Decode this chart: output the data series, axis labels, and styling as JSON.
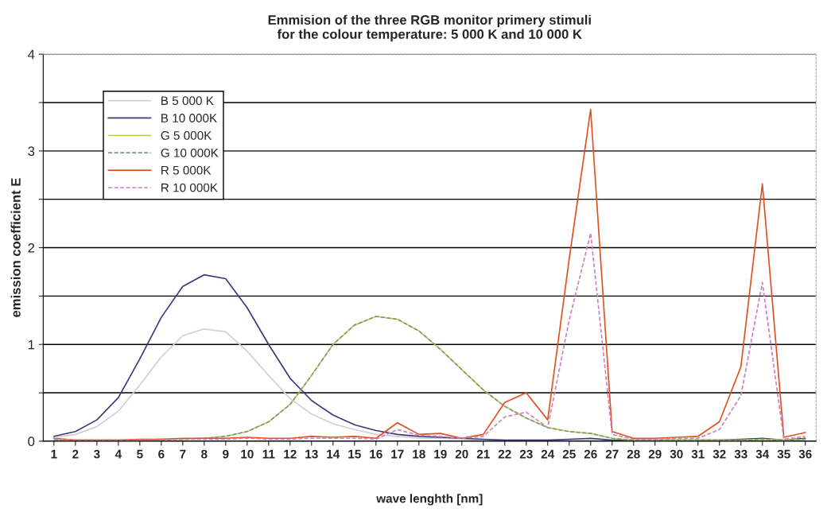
{
  "chart_data": {
    "type": "line",
    "title": "Emmision of the three RGB monitor primery stimuli\nfor the colour temperature: 5 000 K and 10 000 K",
    "xlabel": "wave lenghth [nm]",
    "ylabel": "emission coefficient E",
    "categories": [
      "1",
      "2",
      "3",
      "4",
      "5",
      "6",
      "7",
      "8",
      "9",
      "10",
      "11",
      "12",
      "13",
      "14",
      "15",
      "16",
      "17",
      "18",
      "19",
      "20",
      "21",
      "22",
      "23",
      "24",
      "25",
      "26",
      "27",
      "28",
      "29",
      "30",
      "31",
      "32",
      "33",
      "34",
      "35",
      "36"
    ],
    "series": [
      {
        "name": "B 5 000 K",
        "color": "#d0d0d0",
        "line_style": "solid",
        "values": [
          0.04,
          0.07,
          0.15,
          0.31,
          0.58,
          0.87,
          1.09,
          1.16,
          1.13,
          0.93,
          0.68,
          0.44,
          0.28,
          0.18,
          0.12,
          0.07,
          0.05,
          0.03,
          0.03,
          0.02,
          0.01,
          0.01,
          0.01,
          0.01,
          0.01,
          0.02,
          0.01,
          0.01,
          0.01,
          0.01,
          0.01,
          0.01,
          0.01,
          0.02,
          0.01,
          0.02
        ]
      },
      {
        "name": "B 10 000K",
        "color": "#3a3a7a",
        "line_style": "solid",
        "values": [
          0.05,
          0.1,
          0.22,
          0.45,
          0.85,
          1.28,
          1.6,
          1.72,
          1.68,
          1.38,
          1.0,
          0.65,
          0.42,
          0.27,
          0.17,
          0.11,
          0.07,
          0.05,
          0.04,
          0.03,
          0.02,
          0.01,
          0.01,
          0.01,
          0.02,
          0.03,
          0.01,
          0.01,
          0.01,
          0.01,
          0.01,
          0.01,
          0.02,
          0.03,
          0.01,
          0.03
        ]
      },
      {
        "name": "G 5 000K",
        "color": "#c8d040",
        "line_style": "solid",
        "values": [
          0.01,
          0.01,
          0.01,
          0.01,
          0.01,
          0.02,
          0.02,
          0.03,
          0.05,
          0.1,
          0.2,
          0.38,
          0.68,
          1.0,
          1.2,
          1.29,
          1.26,
          1.14,
          0.95,
          0.74,
          0.53,
          0.36,
          0.24,
          0.14,
          0.1,
          0.08,
          0.03,
          0.01,
          0.01,
          0.01,
          0.01,
          0.01,
          0.01,
          0.02,
          0.01,
          0.02
        ]
      },
      {
        "name": "G 10 000K",
        "color": "#7a9a8a",
        "line_style": "dashed",
        "values": [
          0.01,
          0.01,
          0.01,
          0.01,
          0.01,
          0.02,
          0.02,
          0.03,
          0.05,
          0.1,
          0.2,
          0.38,
          0.68,
          1.0,
          1.2,
          1.29,
          1.26,
          1.14,
          0.95,
          0.74,
          0.53,
          0.36,
          0.24,
          0.14,
          0.1,
          0.08,
          0.03,
          0.01,
          0.01,
          0.01,
          0.01,
          0.01,
          0.01,
          0.02,
          0.01,
          0.02
        ]
      },
      {
        "name": "R 5 000K",
        "color": "#e05020",
        "line_style": "solid",
        "values": [
          0.03,
          0.01,
          0.01,
          0.01,
          0.02,
          0.02,
          0.03,
          0.03,
          0.03,
          0.04,
          0.03,
          0.03,
          0.05,
          0.04,
          0.05,
          0.03,
          0.19,
          0.07,
          0.08,
          0.03,
          0.07,
          0.4,
          0.5,
          0.22,
          1.88,
          3.43,
          0.1,
          0.03,
          0.03,
          0.04,
          0.05,
          0.2,
          0.77,
          2.66,
          0.04,
          0.09
        ]
      },
      {
        "name": "R 10 000K",
        "color": "#d080c0",
        "line_style": "dashed",
        "values": [
          0.02,
          0.01,
          0.01,
          0.01,
          0.01,
          0.01,
          0.02,
          0.02,
          0.02,
          0.03,
          0.02,
          0.02,
          0.03,
          0.03,
          0.03,
          0.02,
          0.12,
          0.06,
          0.05,
          0.03,
          0.05,
          0.25,
          0.3,
          0.14,
          1.25,
          2.15,
          0.07,
          0.02,
          0.02,
          0.03,
          0.03,
          0.12,
          0.47,
          1.64,
          0.02,
          0.05
        ]
      }
    ],
    "ylim": [
      0,
      4
    ],
    "yticks": [
      0,
      {
        "value": 0.5,
        "label": null
      },
      1,
      {
        "value": 1.5,
        "label": null
      },
      2,
      {
        "value": 2.5,
        "label": null
      },
      3,
      {
        "value": 3.5,
        "label": null
      },
      4
    ],
    "grid": "y",
    "legend": "top left",
    "marker": "none"
  }
}
